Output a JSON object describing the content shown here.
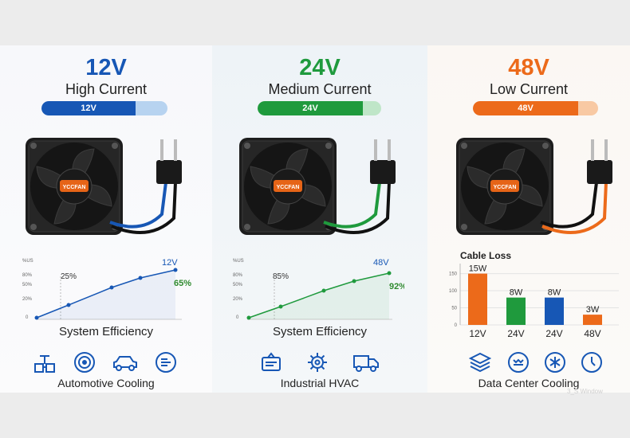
{
  "panels": [
    {
      "voltage": "12V",
      "current": "High Current",
      "bar_label": "12V",
      "color": "#1757b5",
      "light_color": "#b7d3f0",
      "brand": "YCCFAN",
      "chart": {
        "y_ticks": [
          "%US",
          "80%",
          "50%",
          "20%",
          "0"
        ],
        "start_label": "25%",
        "end_top_label": "12V",
        "end_label": "65%",
        "end_label_color": "#2f8a2f"
      },
      "caption": "System Efficiency",
      "icons": [
        "valve-icon",
        "radial-fan-icon",
        "car-icon",
        "cooling-gauge-icon"
      ],
      "application": "Automotive Cooling"
    },
    {
      "voltage": "24V",
      "current": "Medium Current",
      "bar_label": "24V",
      "color": "#1f9a3d",
      "light_color": "#bfe6c8",
      "brand": "YCCFAN",
      "chart": {
        "y_ticks": [
          "%US",
          "80%",
          "50%",
          "20%",
          "0"
        ],
        "start_label": "85%",
        "end_top_label": "48V",
        "end_label": "92%",
        "end_label_color": "#2f8a2f"
      },
      "caption": "System Efficiency",
      "icons": [
        "hvac-unit-icon",
        "gear-icon",
        "truck-icon"
      ],
      "application": "Industrial HVAC"
    },
    {
      "voltage": "48V",
      "current": "Low Current",
      "bar_label": "48V",
      "color": "#ec6a1a",
      "light_color": "#f8c9a3",
      "brand": "YCCFAN",
      "cable_chart": {
        "title": "Cable Loss",
        "y_ticks": [
          "150",
          "100",
          "50",
          "0"
        ]
      },
      "icons": [
        "server-stack-icon",
        "cooling-tray-icon",
        "snowflake-icon",
        "temperature-gauge-icon"
      ],
      "application": "Data Center Cooling",
      "watermark": "3_S Window"
    }
  ],
  "chart_data": {
    "type": "bar",
    "title": "Cable Loss",
    "categories": [
      "12V",
      "24V",
      "24V",
      "48V"
    ],
    "values": [
      15,
      8,
      8,
      3
    ],
    "data_labels": [
      "15W",
      "8W",
      "8W",
      "3W"
    ],
    "colors": [
      "#ec6a1a",
      "#1f9a3d",
      "#1757b5",
      "#ec6a1a"
    ]
  }
}
